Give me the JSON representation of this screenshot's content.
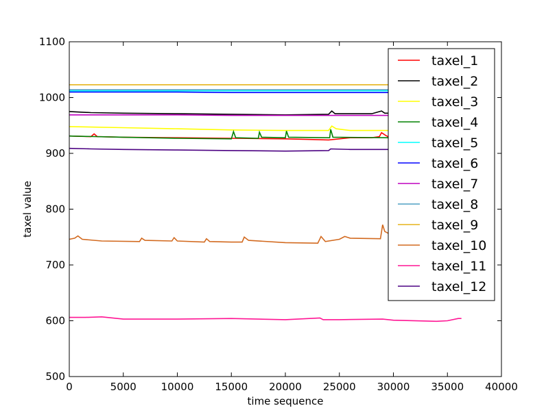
{
  "chart_data": {
    "type": "line",
    "title": "",
    "xlabel": "time sequence",
    "ylabel": "taxel value",
    "xlim": [
      0,
      40000
    ],
    "ylim": [
      500,
      1100
    ],
    "xticks": [
      0,
      5000,
      10000,
      15000,
      20000,
      25000,
      30000,
      35000,
      40000
    ],
    "yticks": [
      500,
      600,
      700,
      800,
      900,
      1000,
      1100
    ],
    "grid": false,
    "legend_position": "top-right",
    "series": [
      {
        "name": "taxel_1",
        "color": "#ff0000",
        "x": [
          0,
          2000,
          2300,
          2600,
          5000,
          10000,
          15000,
          20000,
          22000,
          24000,
          26000,
          28000,
          28700,
          28900,
          29300,
          29600
        ],
        "y": [
          931,
          930,
          935,
          930,
          929,
          928,
          927,
          926,
          925,
          924,
          928,
          928,
          930,
          937,
          932,
          929
        ]
      },
      {
        "name": "taxel_2",
        "color": "#000000",
        "x": [
          0,
          2000,
          5000,
          10000,
          15000,
          20000,
          24000,
          24300,
          24600,
          28000,
          28900,
          29200,
          29600
        ],
        "y": [
          975,
          973,
          972,
          971,
          970,
          969,
          970,
          976,
          971,
          971,
          976,
          972,
          972
        ]
      },
      {
        "name": "taxel_3",
        "color": "#ffff00",
        "x": [
          0,
          5000,
          10000,
          15000,
          20000,
          24000,
          24300,
          24700,
          26000,
          29600
        ],
        "y": [
          948,
          946,
          944,
          942,
          941,
          941,
          949,
          944,
          941,
          941
        ]
      },
      {
        "name": "taxel_4",
        "color": "#008000",
        "x": [
          0,
          5000,
          10000,
          15000,
          15200,
          15400,
          17500,
          17600,
          17800,
          20000,
          20100,
          20300,
          24100,
          24200,
          24400,
          29600
        ],
        "y": [
          931,
          929,
          927,
          926,
          939,
          928,
          927,
          938,
          929,
          928,
          940,
          929,
          928,
          943,
          929,
          928
        ]
      },
      {
        "name": "taxel_5",
        "color": "#00ffff",
        "x": [
          0,
          10000,
          20000,
          29600
        ],
        "y": [
          1012,
          1012,
          1012,
          1012
        ]
      },
      {
        "name": "taxel_6",
        "color": "#0000ff",
        "x": [
          0,
          5000,
          10000,
          15000,
          20000,
          25000,
          29600
        ],
        "y": [
          1010,
          1010,
          1010,
          1009,
          1009,
          1009,
          1009
        ]
      },
      {
        "name": "taxel_7",
        "color": "#bf00bf",
        "x": [
          0,
          5000,
          10000,
          15000,
          20000,
          25000,
          29600
        ],
        "y": [
          969,
          969,
          969,
          968,
          968,
          968,
          968
        ]
      },
      {
        "name": "taxel_8",
        "color": "#4d9fc4",
        "x": [
          0,
          10000,
          20000,
          29600
        ],
        "y": [
          1014,
          1014,
          1014,
          1014
        ]
      },
      {
        "name": "taxel_9",
        "color": "#e5b31a",
        "x": [
          0,
          10000,
          20000,
          29600
        ],
        "y": [
          1023,
          1023,
          1023,
          1023
        ]
      },
      {
        "name": "taxel_10",
        "color": "#d2691e",
        "x": [
          0,
          500,
          800,
          1200,
          3000,
          6500,
          6700,
          7000,
          9500,
          9700,
          10000,
          12500,
          12700,
          13000,
          15000,
          16000,
          16200,
          16600,
          20000,
          23000,
          23300,
          23700,
          25000,
          25500,
          26000,
          28800,
          29000,
          29200,
          29600
        ],
        "y": [
          746,
          748,
          752,
          746,
          743,
          742,
          748,
          744,
          743,
          749,
          743,
          741,
          747,
          742,
          741,
          741,
          750,
          744,
          740,
          739,
          751,
          742,
          746,
          751,
          748,
          747,
          772,
          760,
          756
        ]
      },
      {
        "name": "taxel_11",
        "color": "#ff1493",
        "x": [
          0,
          1500,
          3000,
          5000,
          10000,
          15000,
          20000,
          23200,
          23500,
          25000,
          29000,
          30000,
          34000,
          35000,
          36000,
          36300
        ],
        "y": [
          606,
          606,
          607,
          603,
          603,
          604,
          602,
          605,
          602,
          602,
          603,
          601,
          599,
          600,
          604,
          604
        ]
      },
      {
        "name": "taxel_12",
        "color": "#4b0082",
        "x": [
          0,
          2000,
          5000,
          10000,
          15000,
          20000,
          24000,
          24200,
          26000,
          29600
        ],
        "y": [
          909,
          908,
          907,
          906,
          905,
          904,
          905,
          908,
          907,
          907
        ]
      }
    ]
  }
}
